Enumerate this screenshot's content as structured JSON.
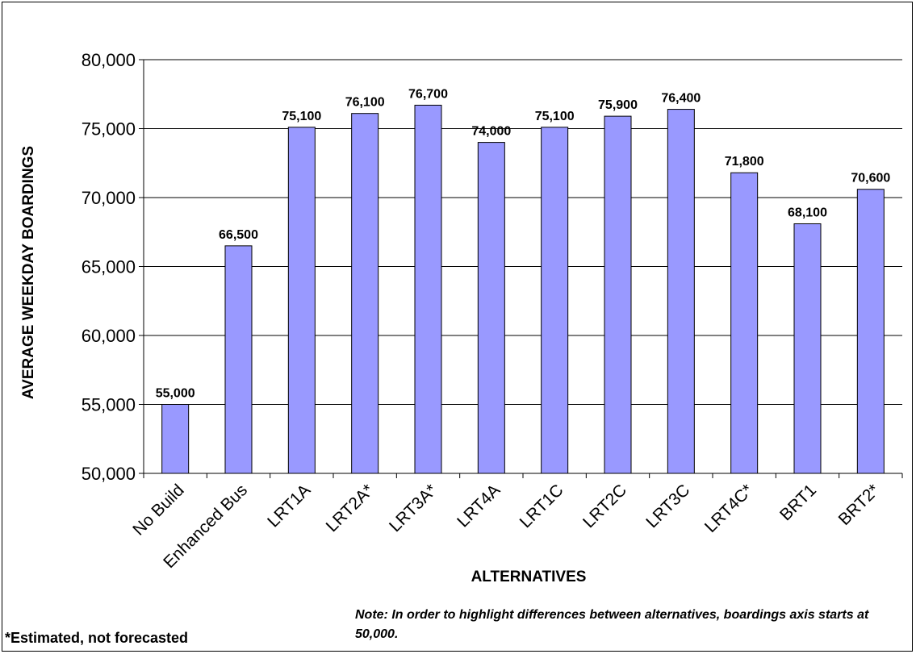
{
  "chart_data": {
    "type": "bar",
    "title": "",
    "xlabel": "ALTERNATIVES",
    "ylabel": "AVERAGE WEEKDAY BOARDINGS",
    "ylim": [
      50000,
      80000
    ],
    "yticks": [
      50000,
      55000,
      60000,
      65000,
      70000,
      75000,
      80000
    ],
    "ytick_labels": [
      "50,000",
      "55,000",
      "60,000",
      "65,000",
      "70,000",
      "75,000",
      "80,000"
    ],
    "grid": "horizontal",
    "categories": [
      "No Build",
      "Enhanced Bus",
      "LRT1A",
      "LRT2A*",
      "LRT3A*",
      "LRT4A",
      "LRT1C",
      "LRT2C",
      "LRT3C",
      "LRT4C*",
      "BRT1",
      "BRT2*"
    ],
    "values": [
      55000,
      66500,
      75100,
      76100,
      76700,
      74000,
      75100,
      75900,
      76400,
      71800,
      68100,
      70600
    ],
    "data_labels": [
      "55,000",
      "66,500",
      "75,100",
      "76,100",
      "76,700",
      "74,000",
      "75,100",
      "75,900",
      "76,400",
      "71,800",
      "68,100",
      "70,600"
    ],
    "bar_color": "#9999ff",
    "bar_edge_color": "#000000"
  },
  "footnote": "*Estimated, not forecasted",
  "note": "Note: In order to highlight differences between alternatives, boardings axis starts at 50,000."
}
